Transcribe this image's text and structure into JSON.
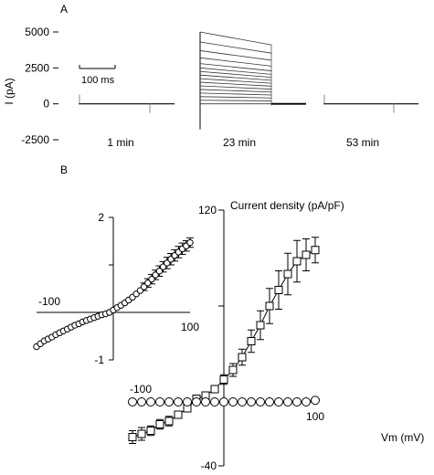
{
  "chart_data": [
    {
      "panel": "A",
      "type": "line",
      "title": "",
      "ylabel": "I (pA)",
      "ylim": [
        -2500,
        5000
      ],
      "yticks": [
        "5000",
        "2500",
        "0",
        "-2500"
      ],
      "yticks_values": [
        5000,
        2500,
        0,
        -2500
      ],
      "scale_bar": "100 ms",
      "traces": [
        {
          "label": "1  min",
          "description": "flat current traces near 0 pA",
          "pulse_amplitudes_pA": [
            0
          ]
        },
        {
          "label": "23  min",
          "description": "family of outward current steps",
          "pulse_amplitudes_pA": [
            0,
            250,
            500,
            750,
            1000,
            1250,
            1500,
            1750,
            2000,
            2250,
            2500,
            2800,
            3200,
            3700,
            4300,
            5000
          ],
          "end_fraction": 0.82
        },
        {
          "label": "53  min",
          "description": "flat current traces near 0 pA",
          "pulse_amplitudes_pA": [
            0
          ]
        }
      ]
    },
    {
      "panel": "B",
      "type": "scatter",
      "title": "",
      "ylabel": "Current density (pA/pF)",
      "xlabel": "Vm (mV)",
      "xlim": [
        -100,
        100
      ],
      "ylim": [
        -40,
        120
      ],
      "x_tick_labels": [
        "-100",
        "100"
      ],
      "y_tick_labels": [
        "120",
        "-40"
      ],
      "grid": false,
      "series": [
        {
          "marker": "square",
          "x": [
            -100,
            -90,
            -80,
            -70,
            -60,
            -50,
            -40,
            -30,
            -20,
            -10,
            0,
            10,
            20,
            30,
            40,
            50,
            60,
            70,
            80,
            90,
            100
          ],
          "y": [
            -22,
            -20,
            -18,
            -14,
            -12,
            -8,
            -4,
            2,
            4,
            8,
            14,
            20,
            28,
            38,
            48,
            60,
            70,
            80,
            88,
            92,
            95
          ],
          "err": [
            4,
            4,
            3,
            3,
            3,
            2,
            2,
            2,
            2,
            2,
            3,
            4,
            5,
            7,
            9,
            11,
            12,
            13,
            13,
            10,
            8
          ]
        },
        {
          "marker": "circle",
          "x": [
            -100,
            -90,
            -80,
            -70,
            -60,
            -50,
            -40,
            -30,
            -20,
            -10,
            0,
            10,
            20,
            30,
            40,
            50,
            60,
            70,
            80,
            90,
            100
          ],
          "y": [
            0,
            0,
            0,
            0,
            0,
            0,
            0,
            0,
            0,
            0,
            0,
            0,
            0,
            0,
            0,
            0,
            0,
            0,
            0,
            0,
            1
          ]
        }
      ],
      "inset": {
        "type": "scatter",
        "xlim": [
          -100,
          100
        ],
        "ylim": [
          -1,
          2
        ],
        "x_tick_labels": [
          "-100",
          "100"
        ],
        "y_tick_labels": [
          "2",
          "-1"
        ],
        "series": [
          {
            "marker": "circle",
            "x": [
              -100,
              -95,
              -90,
              -85,
              -80,
              -75,
              -70,
              -65,
              -60,
              -55,
              -50,
              -45,
              -40,
              -35,
              -30,
              -25,
              -20,
              -15,
              -10,
              -5,
              0,
              5,
              10,
              15,
              20,
              25,
              30,
              35,
              40,
              45,
              50,
              55,
              60,
              65,
              70,
              75,
              80,
              85,
              90,
              95,
              100
            ],
            "y": [
              -0.72,
              -0.66,
              -0.6,
              -0.56,
              -0.52,
              -0.47,
              -0.43,
              -0.39,
              -0.35,
              -0.31,
              -0.27,
              -0.24,
              -0.2,
              -0.17,
              -0.14,
              -0.11,
              -0.08,
              -0.05,
              -0.03,
              0,
              0.05,
              0.1,
              0.15,
              0.2,
              0.26,
              0.32,
              0.39,
              0.46,
              0.54,
              0.62,
              0.7,
              0.79,
              0.87,
              0.96,
              1.04,
              1.12,
              1.2,
              1.27,
              1.34,
              1.4,
              1.47
            ],
            "err": [
              0.05,
              0.05,
              0.04,
              0.04,
              0.04,
              0.04,
              0.04,
              0.04,
              0.03,
              0.03,
              0.03,
              0.03,
              0.03,
              0.03,
              0.03,
              0.03,
              0.03,
              0.03,
              0.03,
              0.03,
              0.03,
              0.03,
              0.04,
              0.04,
              0.05,
              0.06,
              0.06,
              0.07,
              0.08,
              0.09,
              0.1,
              0.1,
              0.11,
              0.11,
              0.12,
              0.12,
              0.12,
              0.12,
              0.12,
              0.11,
              0.1
            ]
          }
        ]
      }
    }
  ]
}
